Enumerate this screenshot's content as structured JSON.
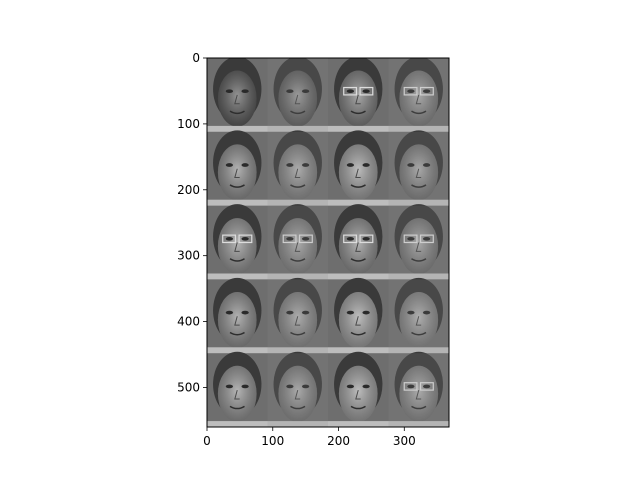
{
  "chart_data": {
    "type": "image",
    "description_free": true,
    "xlim": [
      0,
      368
    ],
    "ylim": [
      560,
      0
    ],
    "xticks": [
      0,
      100,
      200,
      300
    ],
    "yticks": [
      0,
      100,
      200,
      300,
      400,
      500
    ],
    "xtick_labels": [
      "0",
      "100",
      "200",
      "300"
    ],
    "ytick_labels": [
      "0",
      "100",
      "200",
      "300",
      "400",
      "500"
    ],
    "grid": false,
    "image_grid": {
      "rows": 5,
      "cols": 4,
      "tile_width": 92,
      "tile_height": 112
    },
    "tiles": [
      {
        "row": 0,
        "col": 0,
        "kind": "original",
        "tone": "#5a5a5a"
      },
      {
        "row": 0,
        "col": 1,
        "kind": "reconstruction",
        "tone": "#6a6a6a"
      },
      {
        "row": 0,
        "col": 2,
        "kind": "original",
        "tone": "#7a7a7a",
        "glasses": true
      },
      {
        "row": 0,
        "col": 3,
        "kind": "reconstruction",
        "tone": "#858585",
        "glasses": true
      },
      {
        "row": 1,
        "col": 0,
        "kind": "original",
        "tone": "#8a8a8a"
      },
      {
        "row": 1,
        "col": 1,
        "kind": "reconstruction",
        "tone": "#8c8c8c"
      },
      {
        "row": 1,
        "col": 2,
        "kind": "original",
        "tone": "#9a9a9a"
      },
      {
        "row": 1,
        "col": 3,
        "kind": "reconstruction",
        "tone": "#858585"
      },
      {
        "row": 2,
        "col": 0,
        "kind": "original",
        "tone": "#8e8e8e",
        "glasses": true
      },
      {
        "row": 2,
        "col": 1,
        "kind": "reconstruction",
        "tone": "#8a8a8a",
        "glasses": true
      },
      {
        "row": 2,
        "col": 2,
        "kind": "original",
        "tone": "#8a8a8a",
        "glasses": true
      },
      {
        "row": 2,
        "col": 3,
        "kind": "reconstruction",
        "tone": "#858585",
        "glasses": true
      },
      {
        "row": 3,
        "col": 0,
        "kind": "original",
        "tone": "#8a8a8a"
      },
      {
        "row": 3,
        "col": 1,
        "kind": "reconstruction",
        "tone": "#8c8c8c"
      },
      {
        "row": 3,
        "col": 2,
        "kind": "original",
        "tone": "#9c9c9c"
      },
      {
        "row": 3,
        "col": 3,
        "kind": "reconstruction",
        "tone": "#909090"
      },
      {
        "row": 4,
        "col": 0,
        "kind": "original",
        "tone": "#8e8e8e"
      },
      {
        "row": 4,
        "col": 1,
        "kind": "reconstruction",
        "tone": "#888888"
      },
      {
        "row": 4,
        "col": 2,
        "kind": "original",
        "tone": "#9a9a9a"
      },
      {
        "row": 4,
        "col": 3,
        "kind": "reconstruction",
        "tone": "#8c8c8c",
        "glasses": true
      }
    ],
    "colormap": "gray"
  }
}
